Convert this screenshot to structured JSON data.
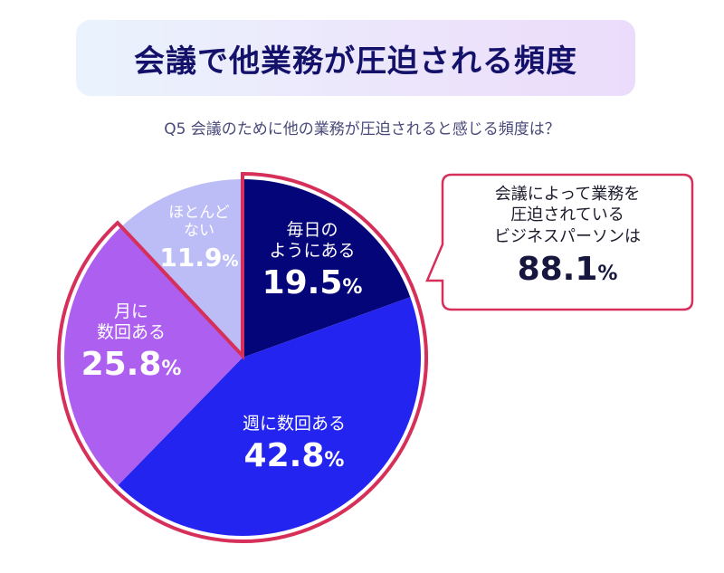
{
  "header": {
    "title": "会議で他業務が圧迫される頻度",
    "subtitle": "Q5  会議のために他の業務が圧迫されると感じる頻度は？"
  },
  "callout": {
    "lines": [
      "会議によって業務を",
      "圧迫されている",
      "ビジネスパーソンは"
    ],
    "value": "88.1",
    "unit": "%",
    "border_color": "#d6305a"
  },
  "slices": [
    {
      "label_lines": [
        "毎日の",
        "ようにある"
      ],
      "value": "19.5",
      "unit": "%",
      "color": "#05057a"
    },
    {
      "label_lines": [
        "週に数回ある"
      ],
      "value": "42.8",
      "unit": "%",
      "color": "#2424f0"
    },
    {
      "label_lines": [
        "月に",
        "数回ある"
      ],
      "value": "25.8",
      "unit": "%",
      "color": "#ad5ff0"
    },
    {
      "label_lines": [
        "ほとんど",
        "ない"
      ],
      "value": "11.9",
      "unit": "%",
      "color": "#bcbcf7"
    }
  ],
  "colors": {
    "title_text": "#14116b",
    "highlight_outline": "#d6305a",
    "subtitle_text": "#4a4a7a"
  },
  "chart_data": {
    "type": "pie",
    "title": "会議で他業務が圧迫される頻度",
    "subtitle": "Q5  会議のために他の業務が圧迫されると感じる頻度は？",
    "categories": [
      "毎日のようにある",
      "週に数回ある",
      "月に数回ある",
      "ほとんどない"
    ],
    "values": [
      19.5,
      42.8,
      25.8,
      11.9
    ],
    "unit": "%",
    "colors": [
      "#05057a",
      "#2424f0",
      "#ad5ff0",
      "#bcbcf7"
    ],
    "start_angle": "12 o'clock, clockwise",
    "highlight": {
      "categories": [
        "毎日のようにある",
        "週に数回ある",
        "月に数回ある"
      ],
      "total": 88.1,
      "annotation": "会議によって業務を圧迫されているビジネスパーソンは 88.1%"
    },
    "legend": "none (labels inside slices)"
  }
}
